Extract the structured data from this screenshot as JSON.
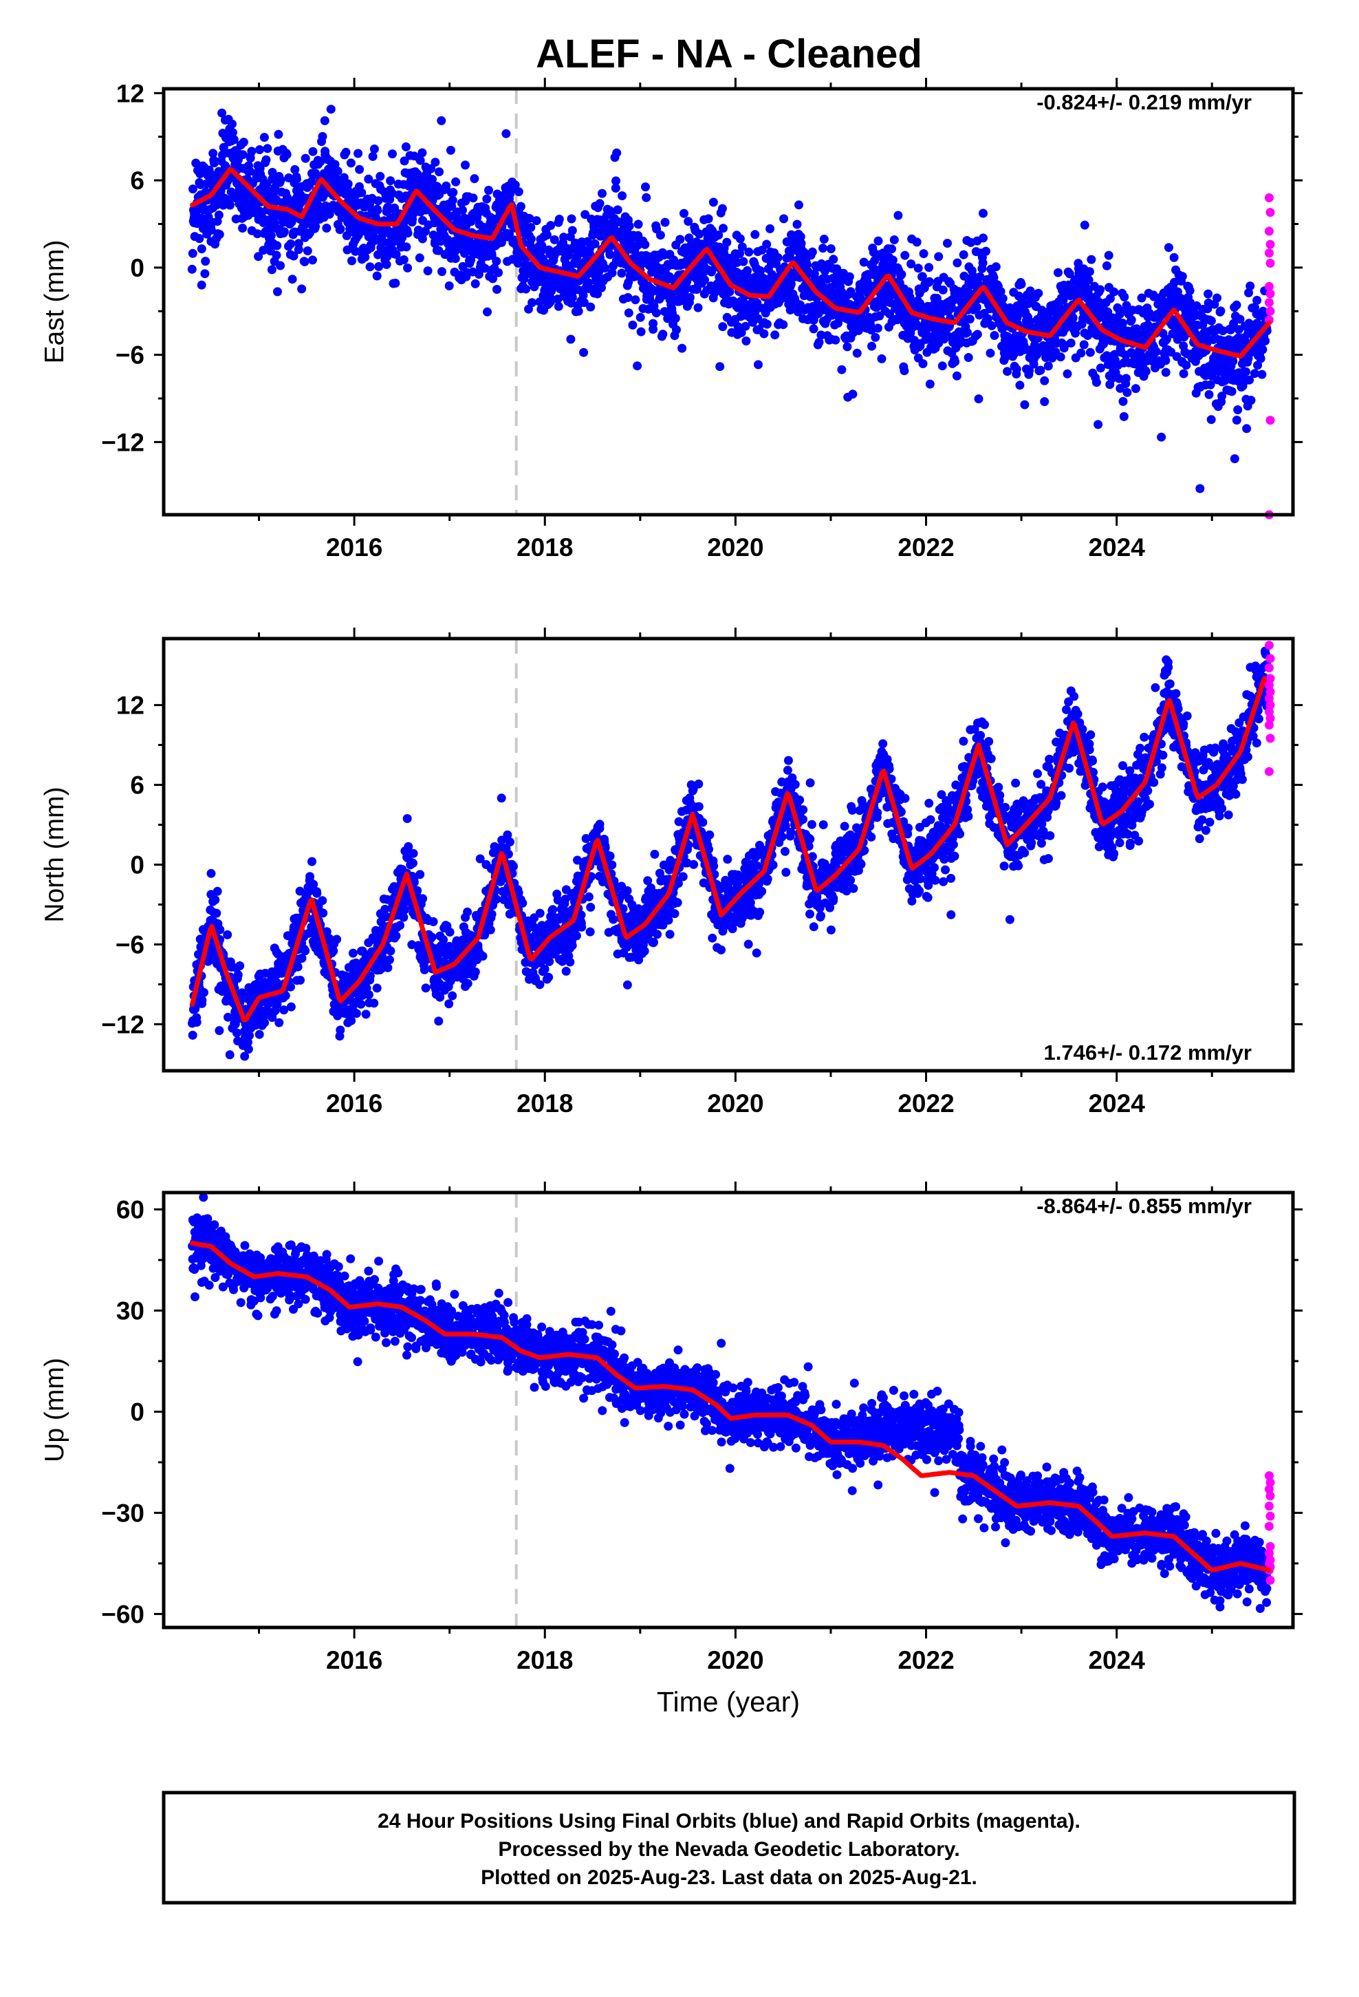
{
  "title": "ALEF  - NA - Cleaned",
  "xlabel": "Time (year)",
  "colors": {
    "final": "#0000ff",
    "rapid": "#ff00ff",
    "model": "#ff0000",
    "offset": "#c8c8c8"
  },
  "footer": {
    "line1": "24 Hour Positions Using Final Orbits (blue) and Rapid Orbits (magenta).",
    "line2": "Processed by the Nevada Geodetic Laboratory.",
    "line3": "Plotted on 2025-Aug-23. Last data on 2025-Aug-21."
  },
  "chart_data": [
    {
      "type": "scatter",
      "ylabel": "East (mm)",
      "rate_text": "-0.824+/- 0.219 mm/yr",
      "rate_position": "top-right",
      "xlim": [
        2014.0,
        2025.85
      ],
      "ylim": [
        -17,
        12.3
      ],
      "xticks": [
        2016,
        2018,
        2020,
        2022,
        2024
      ],
      "yticks": [
        12,
        6,
        0,
        -6,
        -12
      ],
      "offset_year": 2017.7,
      "model": {
        "x": [
          2014.3,
          2014.5,
          2014.7,
          2014.9,
          2015.1,
          2015.3,
          2015.45,
          2015.65,
          2015.85,
          2016.05,
          2016.25,
          2016.45,
          2016.65,
          2016.85,
          2017.05,
          2017.25,
          2017.45,
          2017.65,
          2017.75,
          2017.95,
          2018.15,
          2018.35,
          2018.5,
          2018.7,
          2018.9,
          2019.1,
          2019.35,
          2019.5,
          2019.7,
          2019.95,
          2020.15,
          2020.35,
          2020.6,
          2020.85,
          2021.05,
          2021.3,
          2021.6,
          2021.85,
          2022.05,
          2022.3,
          2022.6,
          2022.85,
          2023.05,
          2023.3,
          2023.6,
          2023.85,
          2024.05,
          2024.3,
          2024.6,
          2024.85,
          2025.05,
          2025.3,
          2025.6
        ],
        "y": [
          4.3,
          5.0,
          6.8,
          5.5,
          4.2,
          4.0,
          3.5,
          6.1,
          4.6,
          3.4,
          3.0,
          3.0,
          5.3,
          3.9,
          2.6,
          2.2,
          2.0,
          4.4,
          1.5,
          0.0,
          -0.3,
          -0.6,
          0.5,
          2.1,
          0.3,
          -0.8,
          -1.4,
          -0.2,
          1.3,
          -1.2,
          -1.9,
          -2.0,
          0.4,
          -1.7,
          -2.8,
          -3.1,
          -0.5,
          -3.1,
          -3.5,
          -3.8,
          -1.3,
          -3.8,
          -4.4,
          -4.7,
          -2.2,
          -4.3,
          -5.0,
          -5.5,
          -2.9,
          -5.3,
          -5.7,
          -6.1,
          -3.8
        ]
      },
      "noise_sd": 1.6,
      "rapid": {
        "x": 2025.6,
        "y": [
          4.8,
          3.8,
          2.5,
          1.6,
          1.0,
          0.3,
          -1.3,
          -1.8,
          -2.4,
          -3.0,
          -3.6,
          -10.5,
          -17.0
        ]
      }
    },
    {
      "type": "scatter",
      "ylabel": "North (mm)",
      "rate_text": "1.746+/- 0.172 mm/yr",
      "rate_position": "bottom-right",
      "xlim": [
        2014.0,
        2025.85
      ],
      "ylim": [
        -15.5,
        17
      ],
      "xticks": [
        2016,
        2018,
        2020,
        2022,
        2024
      ],
      "yticks": [
        12,
        6,
        0,
        -6,
        -12
      ],
      "offset_year": 2017.7,
      "model": {
        "x": [
          2014.3,
          2014.5,
          2014.65,
          2014.85,
          2015.0,
          2015.25,
          2015.55,
          2015.85,
          2016.05,
          2016.3,
          2016.55,
          2016.85,
          2017.05,
          2017.3,
          2017.55,
          2017.85,
          2018.05,
          2018.3,
          2018.55,
          2018.85,
          2019.05,
          2019.3,
          2019.55,
          2019.85,
          2020.05,
          2020.3,
          2020.55,
          2020.85,
          2021.05,
          2021.3,
          2021.55,
          2021.85,
          2022.05,
          2022.3,
          2022.55,
          2022.85,
          2023.05,
          2023.3,
          2023.55,
          2023.85,
          2024.05,
          2024.3,
          2024.55,
          2024.85,
          2025.05,
          2025.3,
          2025.55
        ],
        "y": [
          -10.5,
          -4.5,
          -8.0,
          -11.8,
          -10.0,
          -9.5,
          -2.5,
          -10.3,
          -8.8,
          -6.0,
          -0.7,
          -8.1,
          -7.5,
          -5.5,
          1.0,
          -7.2,
          -5.5,
          -4.2,
          2.0,
          -5.5,
          -4.5,
          -2.2,
          3.8,
          -3.8,
          -2.2,
          -0.5,
          5.5,
          -2.0,
          -0.8,
          1.2,
          7.2,
          -0.3,
          0.8,
          3.0,
          9.0,
          1.5,
          3.0,
          5.0,
          10.8,
          3.0,
          4.0,
          6.2,
          12.5,
          5.0,
          6.0,
          8.5,
          14.0
        ]
      },
      "noise_sd": 1.3,
      "rapid": {
        "x": 2025.6,
        "y": [
          16.5,
          15.5,
          14.8,
          14.0,
          13.5,
          13.0,
          12.5,
          12.0,
          11.5,
          11.0,
          10.5,
          9.5,
          7.0
        ]
      }
    },
    {
      "type": "scatter",
      "ylabel": "Up (mm)",
      "rate_text": "-8.864+/- 0.855 mm/yr",
      "rate_position": "top-right",
      "xlim": [
        2014.0,
        2025.85
      ],
      "ylim": [
        -64,
        65
      ],
      "xticks": [
        2016,
        2018,
        2020,
        2022,
        2024
      ],
      "yticks": [
        60,
        30,
        0,
        -30,
        -60
      ],
      "offset_year": 2017.7,
      "model": {
        "x": [
          2014.3,
          2014.5,
          2014.7,
          2014.95,
          2015.2,
          2015.5,
          2015.75,
          2015.95,
          2016.25,
          2016.5,
          2016.75,
          2016.95,
          2017.25,
          2017.55,
          2017.75,
          2017.95,
          2018.25,
          2018.55,
          2018.75,
          2018.95,
          2019.25,
          2019.55,
          2019.8,
          2019.95,
          2020.2,
          2020.55,
          2020.8,
          2021.0,
          2021.3,
          2021.55,
          2021.75,
          2021.95,
          2022.25,
          2022.5,
          2022.7,
          2022.95,
          2023.3,
          2023.6,
          2023.8,
          2023.95,
          2024.3,
          2024.6,
          2024.8,
          2025.0,
          2025.3,
          2025.6
        ],
        "y": [
          50,
          49,
          44,
          40,
          41,
          40,
          36,
          31,
          32,
          31,
          27,
          23,
          23,
          22,
          18,
          16,
          17,
          16,
          11,
          7,
          7.5,
          6.5,
          2,
          -2,
          -1,
          -1,
          -4,
          -9,
          -9,
          -10,
          -14,
          -19,
          -18,
          -19,
          -23,
          -28,
          -27,
          -28,
          -33,
          -37,
          -36,
          -37,
          -42,
          -47,
          -45,
          -47
        ]
      },
      "scatter_extra": {
        "x": [
          2021.3,
          2021.6,
          2021.95,
          2022.35
        ],
        "y": [
          -7,
          -5,
          -5,
          -7
        ]
      },
      "noise_sd": 4.2,
      "rapid": {
        "x": 2025.6,
        "y": [
          -19,
          -21,
          -23,
          -25,
          -28,
          -31,
          -34,
          -40,
          -42,
          -44,
          -45,
          -46,
          -47,
          -50
        ]
      }
    }
  ]
}
